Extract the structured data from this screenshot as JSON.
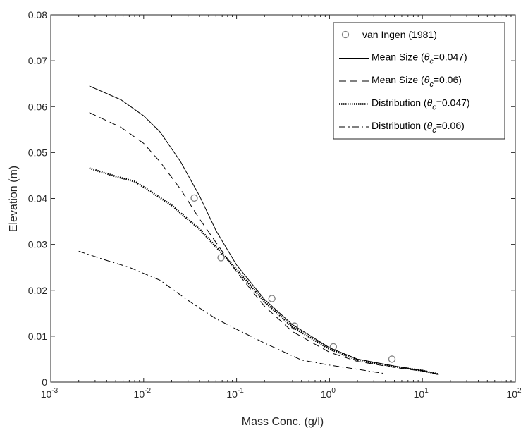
{
  "chart_data": {
    "type": "line",
    "xscale": "log",
    "xlabel": "Mass Conc. (g/l)",
    "ylabel": "Elevation (m)",
    "xlim": [
      0.001,
      100
    ],
    "ylim": [
      0,
      0.08
    ],
    "x_ticks": [
      {
        "value": 0.001,
        "base": "10",
        "exp": "-3"
      },
      {
        "value": 0.01,
        "base": "10",
        "exp": "-2"
      },
      {
        "value": 0.1,
        "base": "10",
        "exp": "-1"
      },
      {
        "value": 1,
        "base": "10",
        "exp": "0"
      },
      {
        "value": 10,
        "base": "10",
        "exp": "1"
      },
      {
        "value": 100,
        "base": "10",
        "exp": "2"
      }
    ],
    "y_ticks": [
      {
        "value": 0,
        "label": "0"
      },
      {
        "value": 0.01,
        "label": "0.01"
      },
      {
        "value": 0.02,
        "label": "0.02"
      },
      {
        "value": 0.03,
        "label": "0.03"
      },
      {
        "value": 0.04,
        "label": "0.04"
      },
      {
        "value": 0.05,
        "label": "0.05"
      },
      {
        "value": 0.06,
        "label": "0.06"
      },
      {
        "value": 0.07,
        "label": "0.07"
      },
      {
        "value": 0.08,
        "label": "0.08"
      }
    ],
    "legend_position": "top-right",
    "series": [
      {
        "name": "van Ingen (1981)",
        "kind": "markers",
        "color": "#808080",
        "points": [
          [
            0.035,
            0.0401
          ],
          [
            0.068,
            0.0271
          ],
          [
            0.24,
            0.0182
          ],
          [
            0.42,
            0.0122
          ],
          [
            1.1,
            0.0077
          ],
          [
            4.7,
            0.005
          ]
        ]
      },
      {
        "name": "Mean Size",
        "theta_value": "=0.047)",
        "kind": "line",
        "dash": "solid",
        "color": "#000000",
        "points": [
          [
            0.0026,
            0.0645
          ],
          [
            0.0057,
            0.0615
          ],
          [
            0.01,
            0.058
          ],
          [
            0.015,
            0.0545
          ],
          [
            0.025,
            0.048
          ],
          [
            0.04,
            0.0405
          ],
          [
            0.06,
            0.033
          ],
          [
            0.1,
            0.0255
          ],
          [
            0.2,
            0.018
          ],
          [
            0.4,
            0.0125
          ],
          [
            1,
            0.0075
          ],
          [
            2,
            0.005
          ],
          [
            5,
            0.0035
          ],
          [
            10,
            0.0025
          ],
          [
            15,
            0.0017
          ]
        ]
      },
      {
        "name": "Mean Size",
        "theta_value": "=0.06)",
        "kind": "line",
        "dash": "dashed",
        "color": "#000000",
        "points": [
          [
            0.0026,
            0.0587
          ],
          [
            0.0057,
            0.0555
          ],
          [
            0.01,
            0.052
          ],
          [
            0.015,
            0.048
          ],
          [
            0.025,
            0.042
          ],
          [
            0.04,
            0.0355
          ],
          [
            0.07,
            0.0285
          ],
          [
            0.1,
            0.024
          ],
          [
            0.2,
            0.0165
          ],
          [
            0.4,
            0.011
          ],
          [
            1,
            0.0065
          ],
          [
            2,
            0.0045
          ],
          [
            5,
            0.0032
          ],
          [
            10,
            0.0024
          ],
          [
            15,
            0.0017
          ]
        ]
      },
      {
        "name": "Distribution",
        "theta_value": "=0.047)",
        "kind": "line",
        "dash": "dotted",
        "color": "#000000",
        "points": [
          [
            0.0026,
            0.0466
          ],
          [
            0.005,
            0.0448
          ],
          [
            0.008,
            0.0437
          ],
          [
            0.01,
            0.0425
          ],
          [
            0.02,
            0.0385
          ],
          [
            0.04,
            0.0333
          ],
          [
            0.07,
            0.028
          ],
          [
            0.1,
            0.0245
          ],
          [
            0.2,
            0.0175
          ],
          [
            0.4,
            0.012
          ],
          [
            1,
            0.0072
          ],
          [
            2,
            0.0048
          ],
          [
            5,
            0.0034
          ],
          [
            10,
            0.0025
          ],
          [
            15,
            0.0017
          ]
        ]
      },
      {
        "name": "Distribution",
        "theta_value": "=0.06)",
        "kind": "line",
        "dash": "dashdot",
        "color": "#000000",
        "points": [
          [
            0.002,
            0.0285
          ],
          [
            0.004,
            0.0265
          ],
          [
            0.007,
            0.025
          ],
          [
            0.015,
            0.0222
          ],
          [
            0.03,
            0.0178
          ],
          [
            0.06,
            0.0138
          ],
          [
            0.1,
            0.0115
          ],
          [
            0.2,
            0.0085
          ],
          [
            0.5,
            0.0048
          ],
          [
            1,
            0.0037
          ],
          [
            2,
            0.0028
          ],
          [
            3.8,
            0.0019
          ]
        ]
      }
    ]
  }
}
